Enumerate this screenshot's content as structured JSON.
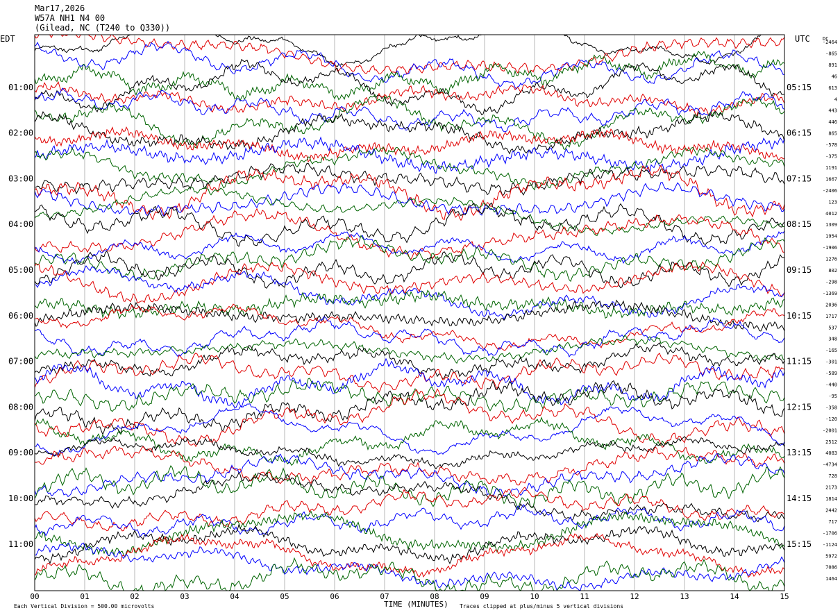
{
  "header": {
    "date": "Mar17,2026",
    "station": "W57A NH1 N4 00",
    "location": "(Gilead, NC (T240 to Q330))"
  },
  "axis_labels": {
    "left_tz": "EDT",
    "right_tz": "UTC",
    "dc": "DC",
    "x_title": "TIME (MINUTES)"
  },
  "footer": {
    "scale_note": "Each Vertical Division = 500.00 microvolts",
    "clip_note": "Traces clipped at plus/minus 5 vertical divisions"
  },
  "chart_data": {
    "type": "line",
    "title": "",
    "xlabel": "TIME (MINUTES)",
    "xlim": [
      0,
      15
    ],
    "x_ticks": [
      "00",
      "01",
      "02",
      "03",
      "04",
      "05",
      "06",
      "07",
      "08",
      "09",
      "10",
      "11",
      "12",
      "13",
      "14",
      "15"
    ],
    "rows_per_hour": 4,
    "first_row": 0,
    "last_row": 47,
    "left_hour_labels": [
      "01:00",
      "02:00",
      "03:00",
      "04:00",
      "05:00",
      "06:00",
      "07:00",
      "08:00",
      "09:00",
      "10:00",
      "11:00"
    ],
    "right_hour_labels": [
      "05:15",
      "06:15",
      "07:15",
      "08:15",
      "09:15",
      "10:15",
      "11:15",
      "12:15",
      "13:15",
      "14:15",
      "15:15"
    ],
    "trace_colors": [
      "#000000",
      "#e00000",
      "#0000ff",
      "#006400"
    ],
    "dc_offsets": [
      "-2464",
      "-865",
      "891",
      "46",
      "613",
      "4",
      "443",
      "446",
      "865",
      "-578",
      "-375",
      "1191",
      "1667",
      "-2406",
      "123",
      "4012",
      "1309",
      "1954",
      "-1906",
      "1276",
      "802",
      "-298",
      "-1369",
      "2036",
      "1717",
      "537",
      "348",
      "-165",
      "-301",
      "-589",
      "-440",
      "-95",
      "-358",
      "-120",
      "-2001",
      "2512",
      "4083",
      "-4734",
      "728",
      "2173",
      "1814",
      "2442",
      "717",
      "-1706",
      "-1124",
      "5972",
      "7086",
      "1464"
    ],
    "clip_divisions": 5,
    "microvolts_per_division": 500.0
  }
}
